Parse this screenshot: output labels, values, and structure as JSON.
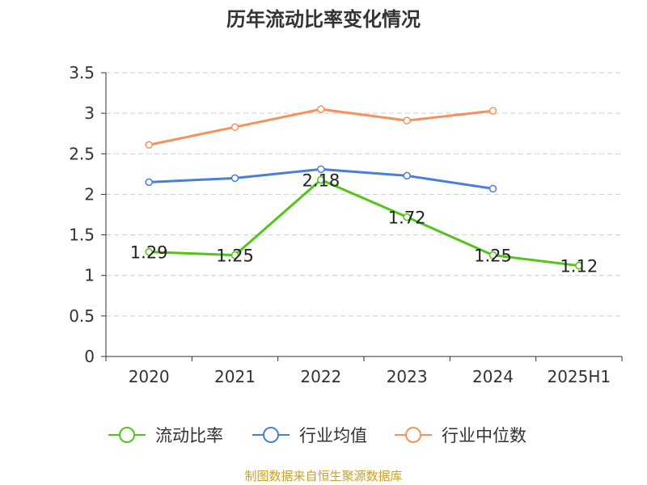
{
  "colors": {
    "current_ratio": "#52c41a",
    "industry_avg": "#4a7fd9",
    "industry_median": "#f7915c",
    "axis": "#333333",
    "grid": "#cccccc",
    "source": "#c9a227"
  },
  "chart_data": {
    "type": "line",
    "title": "历年流动比率变化情况",
    "categories": [
      "2020",
      "2021",
      "2022",
      "2023",
      "2024",
      "2025H1"
    ],
    "y_ticks": [
      "0",
      "0.5",
      "1",
      "1.5",
      "2",
      "2.5",
      "3",
      "3.5"
    ],
    "ylim": [
      0,
      3.5
    ],
    "grid": true,
    "legend_position": "bottom",
    "series": [
      {
        "name": "流动比率",
        "values": [
          1.29,
          1.25,
          2.18,
          1.72,
          1.25,
          1.12
        ],
        "labels": [
          "1.29",
          "1.25",
          "2.18",
          "1.72",
          "1.25",
          "1.12"
        ]
      },
      {
        "name": "行业均值",
        "values": [
          2.15,
          2.2,
          2.31,
          2.23,
          2.07,
          null
        ]
      },
      {
        "name": "行业中位数",
        "values": [
          2.61,
          2.83,
          3.05,
          2.91,
          3.03,
          null
        ]
      }
    ]
  },
  "footer": {
    "source": "制图数据来自恒生聚源数据库"
  }
}
